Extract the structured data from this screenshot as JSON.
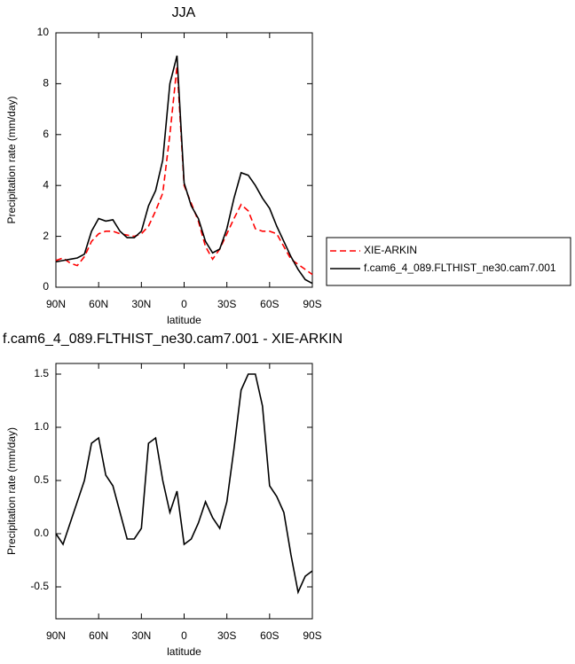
{
  "chart_data": [
    {
      "type": "line",
      "title": "JJA",
      "xlabel": "latitude",
      "ylabel": "Precipitation rate (mm/day)",
      "x": [
        90,
        85,
        80,
        75,
        70,
        65,
        60,
        55,
        50,
        45,
        40,
        35,
        30,
        25,
        20,
        15,
        10,
        5,
        0,
        -5,
        -10,
        -15,
        -20,
        -25,
        -30,
        -35,
        -40,
        -45,
        -50,
        -55,
        -60,
        -65,
        -70,
        -75,
        -80,
        -85,
        -90
      ],
      "xlim": [
        90,
        -90
      ],
      "xticks": [
        {
          "value": 90,
          "label": "90N"
        },
        {
          "value": 60,
          "label": "60N"
        },
        {
          "value": 30,
          "label": "30N"
        },
        0,
        {
          "value": -30,
          "label": "30S"
        },
        {
          "value": -60,
          "label": "60S"
        },
        {
          "value": -90,
          "label": "90S"
        }
      ],
      "ylim": [
        0,
        10
      ],
      "yticks": [
        0,
        2,
        4,
        6,
        8,
        10
      ],
      "legend": "right",
      "series": [
        {
          "name": "XIE-ARKIN",
          "color": "#ff0000",
          "dash": true,
          "values": [
            1.05,
            1.15,
            0.95,
            0.85,
            1.2,
            1.8,
            2.1,
            2.2,
            2.2,
            2.1,
            2.05,
            2.0,
            2.1,
            2.4,
            3.0,
            3.7,
            6.0,
            8.7,
            4.0,
            3.3,
            2.6,
            1.6,
            1.1,
            1.5,
            2.1,
            2.7,
            3.25,
            3.0,
            2.3,
            2.2,
            2.2,
            2.1,
            1.6,
            1.1,
            0.9,
            0.7,
            0.5
          ]
        },
        {
          "name": "f.cam6_4_089.FLTHIST_ne30.cam7.001",
          "color": "#000000",
          "dash": false,
          "values": [
            1.0,
            1.05,
            1.1,
            1.15,
            1.3,
            2.2,
            2.7,
            2.6,
            2.65,
            2.2,
            1.95,
            1.95,
            2.2,
            3.2,
            3.8,
            5.0,
            8.0,
            9.1,
            4.1,
            3.2,
            2.7,
            1.8,
            1.35,
            1.5,
            2.3,
            3.5,
            4.5,
            4.4,
            4.0,
            3.5,
            3.1,
            2.4,
            1.8,
            1.2,
            0.7,
            0.3,
            0.15
          ]
        }
      ]
    },
    {
      "type": "line",
      "title": "f.cam6_4_089.FLTHIST_ne30.cam7.001 - XIE-ARKIN",
      "xlabel": "latitude",
      "ylabel": "Precipitation rate (mm/day)",
      "x": [
        90,
        85,
        80,
        75,
        70,
        65,
        60,
        55,
        50,
        45,
        40,
        35,
        30,
        25,
        20,
        15,
        10,
        5,
        0,
        -5,
        -10,
        -15,
        -20,
        -25,
        -30,
        -35,
        -40,
        -45,
        -50,
        -55,
        -60,
        -65,
        -70,
        -75,
        -80,
        -85,
        -90
      ],
      "xlim": [
        90,
        -90
      ],
      "xticks": [
        {
          "value": 90,
          "label": "90N"
        },
        {
          "value": 60,
          "label": "60N"
        },
        {
          "value": 30,
          "label": "30N"
        },
        0,
        {
          "value": -30,
          "label": "30S"
        },
        {
          "value": -60,
          "label": "60S"
        },
        {
          "value": -90,
          "label": "90S"
        }
      ],
      "ylim": [
        -0.8,
        1.6
      ],
      "yticks": [
        -0.5,
        {
          "value": 0,
          "label": "0.0"
        },
        0.5,
        {
          "value": 1,
          "label": "1.0"
        },
        1.5
      ],
      "series": [
        {
          "color": "#000000",
          "dash": false,
          "values": [
            0.0,
            -0.1,
            0.1,
            0.3,
            0.5,
            0.85,
            0.9,
            0.55,
            0.45,
            0.2,
            -0.05,
            -0.05,
            0.05,
            0.85,
            0.9,
            0.5,
            0.2,
            0.4,
            -0.1,
            -0.05,
            0.1,
            0.3,
            0.15,
            0.05,
            0.3,
            0.8,
            1.35,
            1.5,
            1.5,
            1.2,
            0.45,
            0.35,
            0.2,
            -0.2,
            -0.55,
            -0.4,
            -0.35
          ]
        }
      ]
    }
  ]
}
